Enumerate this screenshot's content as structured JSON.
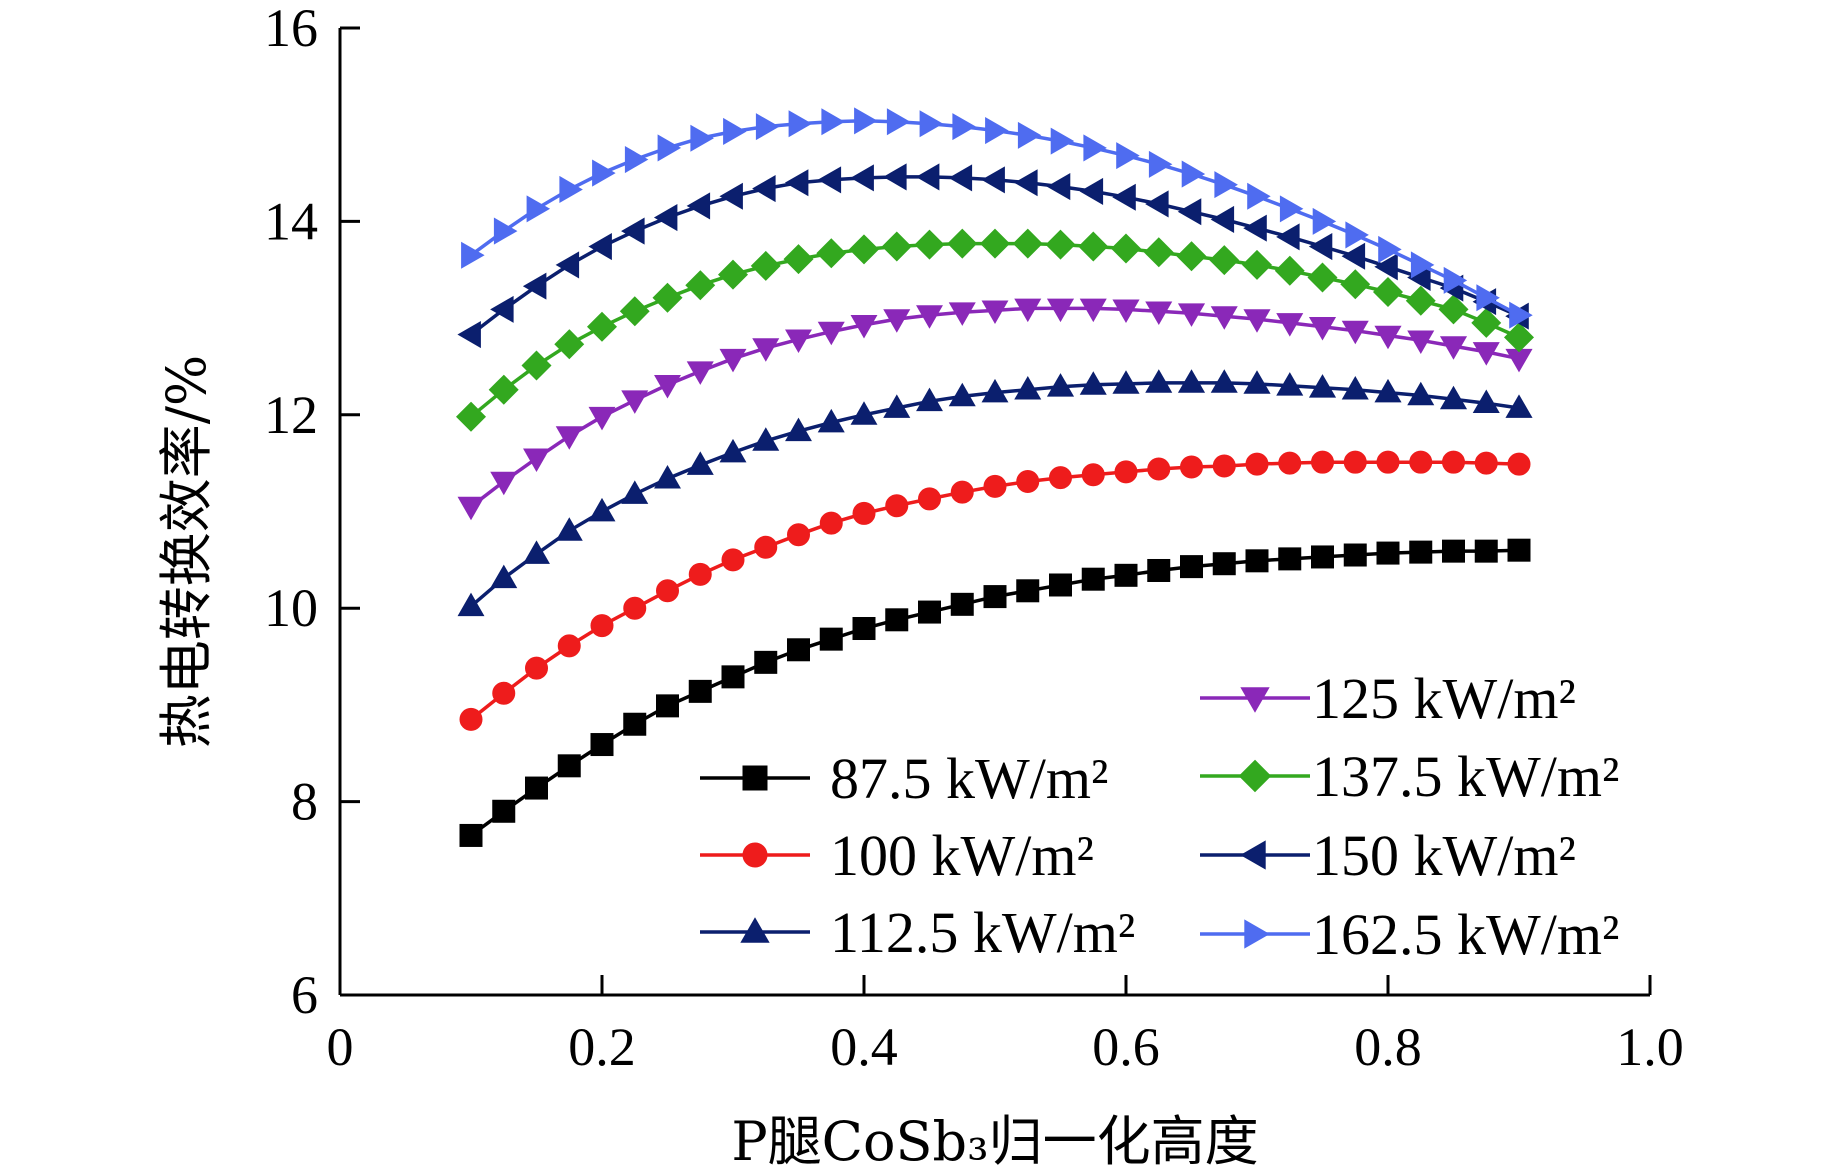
{
  "chart_data": {
    "type": "line",
    "title": "",
    "xlabel": "P腿CoSb₃归一化高度",
    "ylabel": "热电转换效率/%",
    "xlim": [
      0,
      1.0
    ],
    "ylim": [
      6,
      16
    ],
    "x_ticks": [
      0,
      0.2,
      0.4,
      0.6,
      0.8,
      1.0
    ],
    "x_tick_labels": [
      "0",
      "0.2",
      "0.4",
      "0.6",
      "0.8",
      "1.0"
    ],
    "y_ticks": [
      6,
      8,
      10,
      12,
      14,
      16
    ],
    "y_tick_labels": [
      "6",
      "8",
      "10",
      "12",
      "14",
      "16"
    ],
    "grid": false,
    "legend": "bottom-right, two columns",
    "x": [
      0.1,
      0.125,
      0.15,
      0.175,
      0.2,
      0.225,
      0.25,
      0.275,
      0.3,
      0.325,
      0.35,
      0.375,
      0.4,
      0.425,
      0.45,
      0.475,
      0.5,
      0.525,
      0.55,
      0.575,
      0.6,
      0.625,
      0.65,
      0.675,
      0.7,
      0.725,
      0.75,
      0.775,
      0.8,
      0.825,
      0.85,
      0.875,
      0.9
    ],
    "series": [
      {
        "name": "87.5 kW/m²",
        "color": "#000000",
        "marker": "square",
        "values": [
          7.65,
          7.9,
          8.14,
          8.37,
          8.59,
          8.8,
          8.99,
          9.14,
          9.29,
          9.44,
          9.57,
          9.68,
          9.79,
          9.88,
          9.96,
          10.04,
          10.12,
          10.18,
          10.24,
          10.3,
          10.34,
          10.39,
          10.43,
          10.46,
          10.49,
          10.51,
          10.53,
          10.55,
          10.57,
          10.58,
          10.59,
          10.59,
          10.6
        ]
      },
      {
        "name": "100 kW/m²",
        "color": "#ee1c1c",
        "marker": "circle",
        "values": [
          8.85,
          9.12,
          9.38,
          9.61,
          9.82,
          10.0,
          10.18,
          10.35,
          10.5,
          10.63,
          10.76,
          10.88,
          10.98,
          11.06,
          11.13,
          11.2,
          11.26,
          11.31,
          11.35,
          11.38,
          11.41,
          11.44,
          11.46,
          11.47,
          11.49,
          11.5,
          11.51,
          11.51,
          11.51,
          11.51,
          11.51,
          11.5,
          11.49
        ]
      },
      {
        "name": "112.5 kW/m²",
        "color": "#0b1f6e",
        "marker": "triangle-up",
        "values": [
          10.02,
          10.31,
          10.56,
          10.8,
          11.0,
          11.18,
          11.34,
          11.48,
          11.61,
          11.73,
          11.83,
          11.92,
          12.0,
          12.07,
          12.14,
          12.19,
          12.23,
          12.26,
          12.29,
          12.31,
          12.32,
          12.33,
          12.33,
          12.33,
          12.32,
          12.3,
          12.28,
          12.26,
          12.23,
          12.2,
          12.16,
          12.12,
          12.07
        ]
      },
      {
        "name": "125 kW/m²",
        "color": "#8a28b8",
        "marker": "triangle-down",
        "values": [
          11.05,
          11.31,
          11.55,
          11.78,
          11.98,
          12.15,
          12.31,
          12.45,
          12.58,
          12.69,
          12.78,
          12.86,
          12.93,
          12.99,
          13.03,
          13.06,
          13.08,
          13.1,
          13.1,
          13.1,
          13.09,
          13.07,
          13.05,
          13.02,
          12.99,
          12.95,
          12.91,
          12.87,
          12.82,
          12.77,
          12.71,
          12.65,
          12.58
        ]
      },
      {
        "name": "137.5 kW/m²",
        "color": "#33a81f",
        "marker": "diamond",
        "values": [
          11.98,
          12.26,
          12.51,
          12.73,
          12.91,
          13.07,
          13.21,
          13.34,
          13.45,
          13.54,
          13.61,
          13.67,
          13.71,
          13.74,
          13.76,
          13.77,
          13.77,
          13.77,
          13.76,
          13.74,
          13.72,
          13.68,
          13.64,
          13.6,
          13.55,
          13.49,
          13.42,
          13.35,
          13.27,
          13.18,
          13.09,
          12.95,
          12.8
        ]
      },
      {
        "name": "150 kW/m²",
        "color": "#0b1f6e",
        "marker": "triangle-left",
        "values": [
          12.83,
          13.09,
          13.33,
          13.55,
          13.74,
          13.9,
          14.04,
          14.16,
          14.26,
          14.34,
          14.4,
          14.43,
          14.45,
          14.46,
          14.46,
          14.45,
          14.43,
          14.4,
          14.36,
          14.31,
          14.25,
          14.18,
          14.1,
          14.02,
          13.93,
          13.84,
          13.74,
          13.64,
          13.53,
          13.42,
          13.31,
          13.17,
          13.02
        ]
      },
      {
        "name": "162.5 kW/m²",
        "color": "#4f6cf0",
        "marker": "triangle-right",
        "values": [
          13.65,
          13.9,
          14.13,
          14.33,
          14.5,
          14.64,
          14.76,
          14.86,
          14.93,
          14.98,
          15.01,
          15.03,
          15.04,
          15.03,
          15.01,
          14.98,
          14.94,
          14.89,
          14.83,
          14.76,
          14.68,
          14.59,
          14.49,
          14.38,
          14.26,
          14.13,
          14.0,
          13.86,
          13.71,
          13.55,
          13.39,
          13.21,
          13.03
        ]
      }
    ]
  }
}
